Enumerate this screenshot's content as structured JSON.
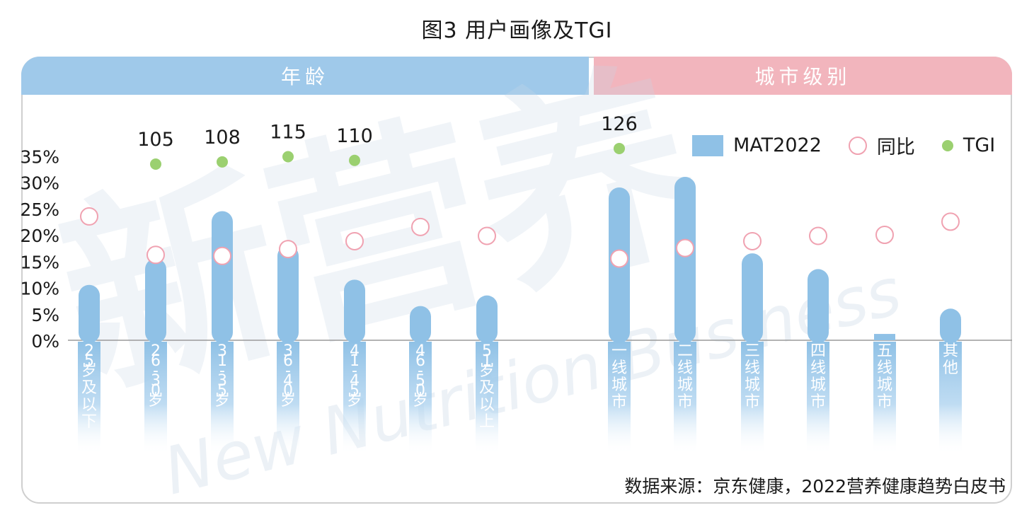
{
  "title": "图3 用户画像及TGI",
  "sections": {
    "age": "年龄",
    "city": "城市级别"
  },
  "source": "数据来源：京东健康，2022营养健康趋势白皮书",
  "legend": {
    "mat": "MAT2022",
    "yoy": "同比",
    "tgi": "TGI"
  },
  "colors": {
    "bar": "#8fc1e6",
    "yoy_ring": "#f0a2b1",
    "tgi_dot": "#9bd070",
    "age_header": "#9fc9ea",
    "city_header": "#f2b5bd"
  },
  "watermark": {
    "cn": "新营养",
    "en": "New Nutrition Business"
  },
  "chart_data": {
    "type": "bar",
    "yticks": [
      "0%",
      "5%",
      "10%",
      "15%",
      "20%",
      "25%",
      "30%",
      "35%"
    ],
    "ylim": [
      0,
      35
    ],
    "categories": [
      {
        "label": "25岁及以下",
        "group": "age",
        "mat": 10.5,
        "yoy": 23.5,
        "tgi": null
      },
      {
        "label": "26-30岁",
        "group": "age",
        "mat": 15.5,
        "yoy": 16.2,
        "tgi": 105
      },
      {
        "label": "31-35岁",
        "group": "age",
        "mat": 24.5,
        "yoy": 16.0,
        "tgi": 108
      },
      {
        "label": "36-40岁",
        "group": "age",
        "mat": 18.0,
        "yoy": 17.3,
        "tgi": 115
      },
      {
        "label": "41-45岁",
        "group": "age",
        "mat": 11.5,
        "yoy": 18.8,
        "tgi": 110
      },
      {
        "label": "46-50岁",
        "group": "age",
        "mat": 6.5,
        "yoy": 21.5,
        "tgi": null
      },
      {
        "label": "51岁及以上",
        "group": "age",
        "mat": 8.5,
        "yoy": 19.8,
        "tgi": null
      },
      {
        "label": "一线城市",
        "group": "city",
        "mat": 29.0,
        "yoy": 15.5,
        "tgi": 126
      },
      {
        "label": "二线城市",
        "group": "city",
        "mat": 31.0,
        "yoy": 17.5,
        "tgi": null
      },
      {
        "label": "三线城市",
        "group": "city",
        "mat": 16.5,
        "yoy": 18.8,
        "tgi": null
      },
      {
        "label": "四线城市",
        "group": "city",
        "mat": 13.5,
        "yoy": 19.8,
        "tgi": null
      },
      {
        "label": "五线城市",
        "group": "city",
        "mat": 1.2,
        "yoy": 20.0,
        "tgi": null
      },
      {
        "label": "其他",
        "group": "city",
        "mat": 6.0,
        "yoy": 22.5,
        "tgi": null
      }
    ]
  }
}
